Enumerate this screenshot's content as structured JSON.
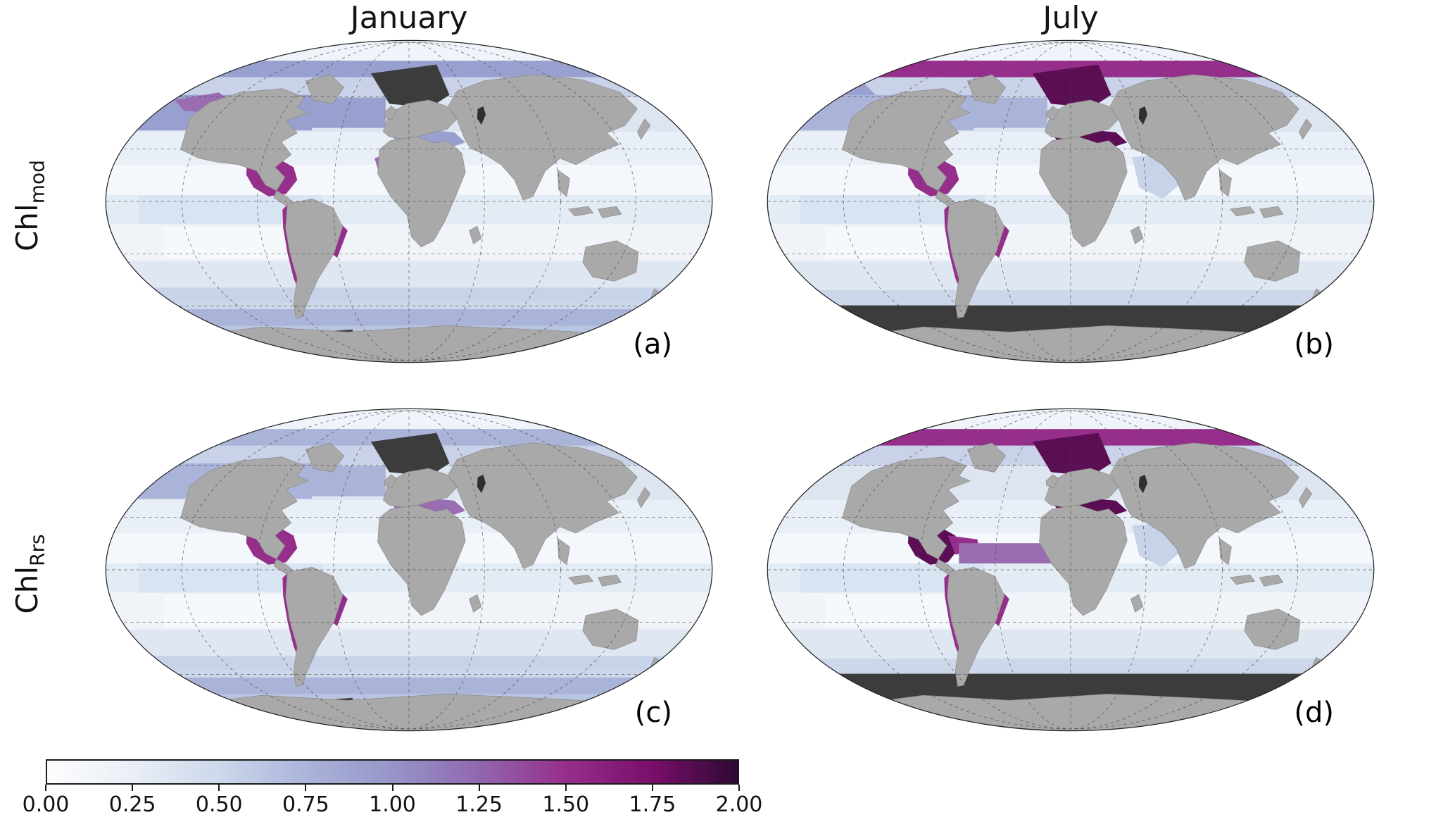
{
  "figure": {
    "columns": [
      "January",
      "July"
    ],
    "row_labels": [
      {
        "main": "Chl",
        "sub": "mod"
      },
      {
        "main": "Chl",
        "sub": "Rrs"
      }
    ]
  },
  "chart_data": {
    "type": "heatmap",
    "title": "",
    "description": "Four-panel global map figure comparing monthly chlorophyll fields (Chl_mod top row, Chl_Rrs bottom row) for January (left) and July (right). Ocean color encodes chlorophyll from 0.00 (white) through blue and purple to 2.00 (dark magenta); land is gray; dark gray regions are missing data (polar night).",
    "columns": [
      "January",
      "July"
    ],
    "rows": [
      "Chl_mod",
      "Chl_Rrs"
    ],
    "value_range": [
      0.0,
      2.0
    ],
    "panels": [
      {
        "id": "a",
        "label": "(a)",
        "row": "Chl_mod",
        "month": "January",
        "features": [
          {
            "id": "arctic_fringe",
            "level": "mid2"
          },
          {
            "id": "north_pacific_band",
            "level": "mid2"
          },
          {
            "id": "north_atlantic_band",
            "level": "mid2"
          },
          {
            "id": "alaska_gulf_strip",
            "level": "purple"
          },
          {
            "id": "norwegian_north_sea",
            "level": "missing"
          },
          {
            "id": "mediterranean",
            "level": "mid2"
          },
          {
            "id": "gulf_of_mexico_caribbean",
            "level": "high"
          },
          {
            "id": "california_strip",
            "level": "purple"
          },
          {
            "id": "peru_chile_coast",
            "level": "high"
          },
          {
            "id": "brazil_coast",
            "level": "high"
          },
          {
            "id": "west_africa_coast",
            "level": "purple"
          },
          {
            "id": "south_stripe_upper",
            "level": "band"
          },
          {
            "id": "south_stripe_lower",
            "level": "mid"
          },
          {
            "id": "antarctic_patch",
            "level": "missing"
          }
        ]
      },
      {
        "id": "b",
        "label": "(b)",
        "row": "Chl_mod",
        "month": "July",
        "features": [
          {
            "id": "arctic_fringe",
            "level": "high"
          },
          {
            "id": "bering_sea",
            "level": "mid2"
          },
          {
            "id": "hudson_bay",
            "level": "high"
          },
          {
            "id": "north_pacific_band",
            "level": "mid"
          },
          {
            "id": "north_atlantic_band",
            "level": "mid"
          },
          {
            "id": "norwegian_north_sea",
            "level": "vhigh"
          },
          {
            "id": "mediterranean",
            "level": "vhigh"
          },
          {
            "id": "black_sea",
            "level": "vhigh"
          },
          {
            "id": "gulf_of_mexico_caribbean",
            "level": "high"
          },
          {
            "id": "peru_chile_coast",
            "level": "high"
          },
          {
            "id": "brazil_coast",
            "level": "high"
          },
          {
            "id": "arabian_sea",
            "level": "band"
          },
          {
            "id": "southern_polar_night",
            "level": "missing"
          }
        ]
      },
      {
        "id": "c",
        "label": "(c)",
        "row": "Chl_Rrs",
        "month": "January",
        "features": [
          {
            "id": "arctic_fringe",
            "level": "mid"
          },
          {
            "id": "north_pacific_band",
            "level": "mid"
          },
          {
            "id": "north_atlantic_band",
            "level": "mid"
          },
          {
            "id": "norwegian_north_sea",
            "level": "missing"
          },
          {
            "id": "mediterranean",
            "level": "purple"
          },
          {
            "id": "black_sea",
            "level": "purple"
          },
          {
            "id": "gulf_of_mexico_caribbean",
            "level": "high"
          },
          {
            "id": "california_strip",
            "level": "purple"
          },
          {
            "id": "peru_chile_coast",
            "level": "high"
          },
          {
            "id": "brazil_coast",
            "level": "high"
          },
          {
            "id": "south_stripe_upper",
            "level": "band"
          },
          {
            "id": "south_stripe_lower",
            "level": "mid"
          },
          {
            "id": "antarctic_patch",
            "level": "missing"
          }
        ]
      },
      {
        "id": "d",
        "label": "(d)",
        "row": "Chl_Rrs",
        "month": "July",
        "features": [
          {
            "id": "arctic_fringe",
            "level": "high"
          },
          {
            "id": "hudson_bay",
            "level": "high"
          },
          {
            "id": "norwegian_north_sea",
            "level": "vhigh"
          },
          {
            "id": "mediterranean",
            "level": "vhigh"
          },
          {
            "id": "black_sea",
            "level": "vhigh"
          },
          {
            "id": "gulf_of_mexico_caribbean",
            "level": "vhigh"
          },
          {
            "id": "caribbean_extension",
            "level": "high"
          },
          {
            "id": "equatorial_atlantic_band",
            "level": "purple"
          },
          {
            "id": "peru_chile_coast",
            "level": "high"
          },
          {
            "id": "brazil_coast",
            "level": "high"
          },
          {
            "id": "arabian_sea",
            "level": "band"
          },
          {
            "id": "southern_polar_night",
            "level": "missing"
          }
        ]
      }
    ],
    "colorbar": {
      "min": 0.0,
      "max": 2.0,
      "ticks": [
        "0.00",
        "0.25",
        "0.50",
        "0.75",
        "1.00",
        "1.25",
        "1.50",
        "1.75",
        "2.00"
      ],
      "gradient_stops": [
        {
          "value": 0.0,
          "color": "#fdfdfe"
        },
        {
          "value": 0.25,
          "color": "#e9eef6"
        },
        {
          "value": 0.5,
          "color": "#ccd8eb"
        },
        {
          "value": 0.75,
          "color": "#abb4da"
        },
        {
          "value": 1.0,
          "color": "#9695c8"
        },
        {
          "value": 1.25,
          "color": "#9167b0"
        },
        {
          "value": 1.5,
          "color": "#962f8b"
        },
        {
          "value": 1.75,
          "color": "#7a0e6b"
        },
        {
          "value": 2.0,
          "color": "#2d0a33"
        }
      ]
    }
  }
}
